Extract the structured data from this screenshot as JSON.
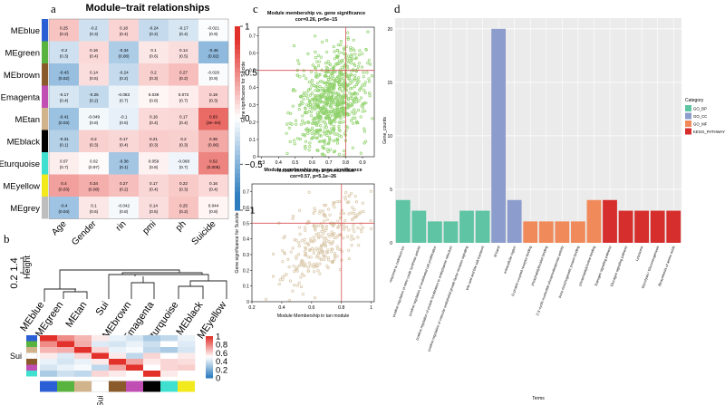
{
  "panel_letters": [
    "a",
    "b",
    "c",
    "d"
  ],
  "colors": {
    "neg": "#2e7dbf",
    "pos": "#e2312b",
    "mid": "#ffffff",
    "green_pts": "#8fd16b",
    "tan_pts": "#d9c7a8",
    "ref_line": "#d65050",
    "GO_BP": "#5ec4a4",
    "GO_CC": "#8c9ccc",
    "GO_MF": "#f08a5b",
    "KEGG": "#d62d2d"
  },
  "chart_data": [
    {
      "type": "heatmap",
      "id": "a",
      "title": "Module–trait relationships",
      "rows": [
        "MEblue",
        "MEgreen",
        "MEbrown",
        "MEmagenta",
        "MEtan",
        "MEblack",
        "MEturquoise",
        "MEyellow",
        "MEgrey"
      ],
      "row_colors": [
        "#2b5fd6",
        "#59b33f",
        "#8b5a2b",
        "#c04eb3",
        "#d2b48c",
        "#000000",
        "#40e0d0",
        "#f2ea1d",
        "#bebebe"
      ],
      "columns": [
        "Age",
        "Gender",
        "rin",
        "pmi",
        "ph",
        "Suicide"
      ],
      "values": [
        [
          0.25,
          -0.2,
          0.18,
          -0.24,
          -0.17,
          -0.021
        ],
        [
          -0.2,
          0.16,
          -0.34,
          0.1,
          0.14,
          -0.46
        ],
        [
          -0.43,
          0.14,
          -0.24,
          0.2,
          0.27,
          -0.026
        ],
        [
          -0.17,
          -0.25,
          -0.083,
          0.039,
          0.072,
          0.19
        ],
        [
          -0.41,
          -0.049,
          -0.1,
          0.16,
          0.17,
          0.63
        ],
        [
          -0.31,
          0.2,
          0.17,
          0.21,
          0.2,
          0.36
        ],
        [
          0.07,
          0.02,
          -0.38,
          0.059,
          -0.068,
          0.52
        ],
        [
          0.4,
          0.34,
          0.27,
          0.17,
          0.22,
          0.16
        ],
        [
          -0.4,
          0.1,
          -0.042,
          0.14,
          0.25,
          0.044
        ]
      ],
      "pvalues": [
        [
          "(0.2)",
          "(0.3)",
          "(0.4)",
          "(0.2)",
          "(0.4)",
          "(0.9)"
        ],
        [
          "(0.3)",
          "(0.4)",
          "(0.08)",
          "(0.6)",
          "(0.5)",
          "(0.02)"
        ],
        [
          "(0.02)",
          "(0.5)",
          "(0.2)",
          "(0.3)",
          "(0.2)",
          "(0.9)"
        ],
        [
          "(0.4)",
          "(0.2)",
          "(0.7)",
          "(0.8)",
          "(0.7)",
          "(0.3)"
        ],
        [
          "(0.03)",
          "(0.8)",
          "(0.6)",
          "(0.4)",
          "(0.4)",
          "(3e−04)"
        ],
        [
          "(0.1)",
          "(0.3)",
          "(0.4)",
          "(0.3)",
          "(0.3)",
          "(0.06)"
        ],
        [
          "(0.7)",
          "(0.97)",
          "(0.1)",
          "(0.8)",
          "(0.7)",
          "(0.005)"
        ],
        [
          "(0.03)",
          "(0.08)",
          "(0.2)",
          "(0.4)",
          "(0.3)",
          "(0.4)"
        ],
        [
          "(0.04)",
          "(0.6)",
          "(0.8)",
          "(0.5)",
          "(0.2)",
          "(0.8)"
        ]
      ],
      "colorbar": {
        "min": -1,
        "max": 1,
        "ticks": [
          "1",
          "0.5",
          "0",
          "−0.5",
          "−1"
        ]
      }
    },
    {
      "type": "dendrogram",
      "id": "b",
      "ylabel": "Height",
      "y_ticks": [
        "0.2",
        "1.4"
      ],
      "leaves": [
        "MEblue",
        "MEgreen",
        "MEtan",
        "Sui",
        "MEbrown",
        "MEmagenta",
        "MEturquoise",
        "MEblack",
        "MEyellow"
      ]
    },
    {
      "type": "heatmap",
      "id": "b-adjacency",
      "row_label": "Sui",
      "bottom_label": "Sui",
      "colorbar": {
        "min": 0,
        "max": 1,
        "ticks": [
          "1",
          "0.8",
          "0.6",
          "0.4",
          "0.2",
          "0"
        ]
      },
      "row_colors": [
        "#2b5fd6",
        "#59b33f",
        "#d2b48c",
        "#ffffff",
        "#8b5a2b",
        "#c04eb3",
        "#40e0d0",
        "#000000",
        "#f2ea1d"
      ],
      "col_colors": [
        "#2b5fd6",
        "#59b33f",
        "#d2b48c",
        "#ffffff",
        "#8b5a2b",
        "#c04eb3",
        "#000000",
        "#40e0d0",
        "#f2ea1d"
      ],
      "values": [
        [
          1,
          0.78,
          0.68,
          0.55,
          0.45,
          0.4,
          0.3,
          0.35,
          0.45
        ],
        [
          0.78,
          1,
          0.7,
          0.42,
          0.4,
          0.45,
          0.38,
          0.5,
          0.42
        ],
        [
          0.68,
          0.7,
          1,
          0.6,
          0.45,
          0.48,
          0.35,
          0.3,
          0.4
        ],
        [
          0.55,
          0.42,
          0.6,
          1,
          0.55,
          0.35,
          0.6,
          0.5,
          0.55
        ],
        [
          0.45,
          0.4,
          0.45,
          0.55,
          1,
          0.72,
          0.55,
          0.6,
          0.58
        ],
        [
          0.4,
          0.45,
          0.48,
          0.35,
          0.72,
          1,
          0.5,
          0.6,
          0.62
        ],
        [
          0.3,
          0.38,
          0.35,
          0.6,
          0.55,
          0.5,
          1,
          0.55,
          0.5
        ]
      ]
    },
    {
      "type": "scatter",
      "id": "c-green",
      "title": "Module membership vs. gene significance",
      "subtitle": "cor=0.26, p=5e−15",
      "xlabel": "Module Membership in green module",
      "ylabel": "Gene significance for Suicide",
      "xlim": [
        0.28,
        0.97
      ],
      "ylim": [
        0,
        0.75
      ],
      "x_ticks": [
        0.3,
        0.4,
        0.5,
        0.6,
        0.7,
        0.8,
        0.9
      ],
      "y_ticks": [
        0,
        0.1,
        0.2,
        0.3,
        0.4,
        0.5,
        0.6,
        0.7
      ],
      "ref_x": 0.8,
      "ref_y": 0.5,
      "n_points": 800,
      "cor": 0.26
    },
    {
      "type": "scatter",
      "id": "c-tan",
      "title": "Module membership vs. gene significance",
      "subtitle": "cor=0.57, p=5.1e−26",
      "xlabel": "Module Membership in tan module",
      "ylabel": "Gene significance for Suicide",
      "xlim": [
        0.2,
        1.02
      ],
      "ylim": [
        0,
        0.75
      ],
      "x_ticks": [
        0.2,
        0.4,
        0.6,
        0.8,
        1.0
      ],
      "y_ticks": [
        0,
        0.1,
        0.2,
        0.3,
        0.4,
        0.5,
        0.6,
        0.7
      ],
      "ref_x": 0.8,
      "ref_y": 0.5,
      "n_points": 300,
      "cor": 0.57
    },
    {
      "type": "bar",
      "id": "d",
      "xlabel": "Terms",
      "ylabel": "Gene_counts",
      "ylim": [
        0,
        21
      ],
      "y_ticks": [
        0,
        5,
        10,
        15,
        20
      ],
      "legend_title": "Category",
      "legend": [
        "GO_BP",
        "GO_CC",
        "GO_MF",
        "KEGG_PATHWAY"
      ],
      "categories": [
        "response to cadmium ion",
        "positive regulation of nitric-oxide synthase activity",
        "positive regulation of endothelial cell proliferation",
        "positive regulation of protein localization to endoplasmic reticulum",
        "positive regulation of vascular endothelial growth factor receptor signaling",
        "bile acid and bile salt transport",
        "M band",
        "extracellular region",
        "G-protein coupled receptor binding",
        "phosphatidylinositol binding",
        "3',5'-cyclic-nucleotide phosphodiesterase activity",
        "bone morphogenetic protein binding",
        "phosphatidylcholine binding",
        "Estrogen signaling pathway",
        "Glucagon signaling pathway",
        "Lysosome",
        "Glycolysis / Gluconeogenesis",
        "Biosynthesis of amino acids"
      ],
      "category_groups": [
        "GO_BP",
        "GO_BP",
        "GO_BP",
        "GO_BP",
        "GO_BP",
        "GO_BP",
        "GO_CC",
        "GO_CC",
        "GO_MF",
        "GO_MF",
        "GO_MF",
        "GO_MF",
        "GO_MF",
        "KEGG_PATHWAY",
        "KEGG_PATHWAY",
        "KEGG_PATHWAY",
        "KEGG_PATHWAY",
        "KEGG_PATHWAY"
      ],
      "values": [
        4,
        3,
        2,
        2,
        3,
        3,
        20,
        4,
        2,
        2,
        2,
        2,
        4,
        4,
        3,
        3,
        3,
        3
      ]
    }
  ]
}
